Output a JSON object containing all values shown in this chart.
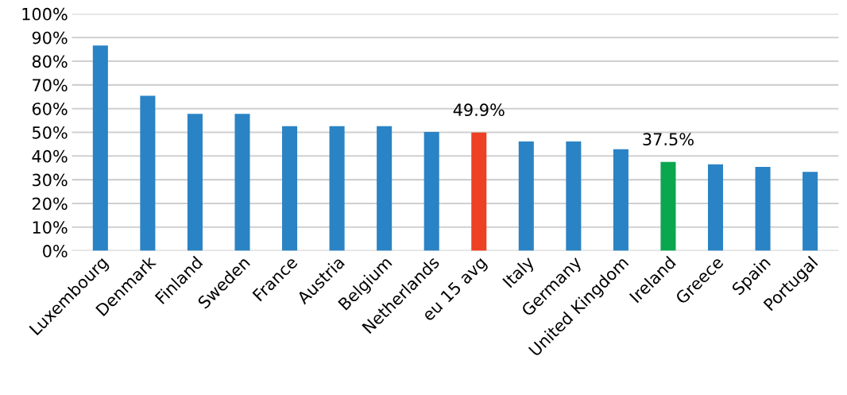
{
  "chart_data": {
    "type": "bar",
    "categories": [
      "Luxembourg",
      "Denmark",
      "Finland",
      "Sweden",
      "France",
      "Austria",
      "Belgium",
      "Netherlands",
      "eu 15 avg",
      "Italy",
      "Germany",
      "United Kingdom",
      "Ireland",
      "Greece",
      "Spain",
      "Portugal"
    ],
    "values": [
      86.6,
      65.4,
      57.8,
      57.8,
      52.6,
      52.6,
      52.6,
      50.2,
      49.9,
      46.1,
      46.1,
      42.9,
      37.5,
      36.5,
      35.4,
      33.3
    ],
    "colors": [
      "#2a83c4",
      "#2a83c4",
      "#2a83c4",
      "#2a83c4",
      "#2a83c4",
      "#2a83c4",
      "#2a83c4",
      "#2a83c4",
      "#ee4023",
      "#2a83c4",
      "#2a83c4",
      "#2a83c4",
      "#0aa74e",
      "#2a83c4",
      "#2a83c4",
      "#2a83c4"
    ],
    "value_labels": [
      null,
      null,
      null,
      null,
      null,
      null,
      null,
      null,
      "49.9%",
      null,
      null,
      null,
      "37.5%",
      null,
      null,
      null
    ],
    "ylim": [
      0,
      100
    ],
    "yticks": [
      {
        "value": 0,
        "label": "0%"
      },
      {
        "value": 10,
        "label": "10%"
      },
      {
        "value": 20,
        "label": "20%"
      },
      {
        "value": 30,
        "label": "30%"
      },
      {
        "value": 40,
        "label": "40%"
      },
      {
        "value": 50,
        "label": "50%"
      },
      {
        "value": 60,
        "label": "60%"
      },
      {
        "value": 70,
        "label": "70%"
      },
      {
        "value": 80,
        "label": "80%"
      },
      {
        "value": 90,
        "label": "90%"
      },
      {
        "value": 100,
        "label": "100%"
      }
    ],
    "grid": "y",
    "legend": false
  }
}
